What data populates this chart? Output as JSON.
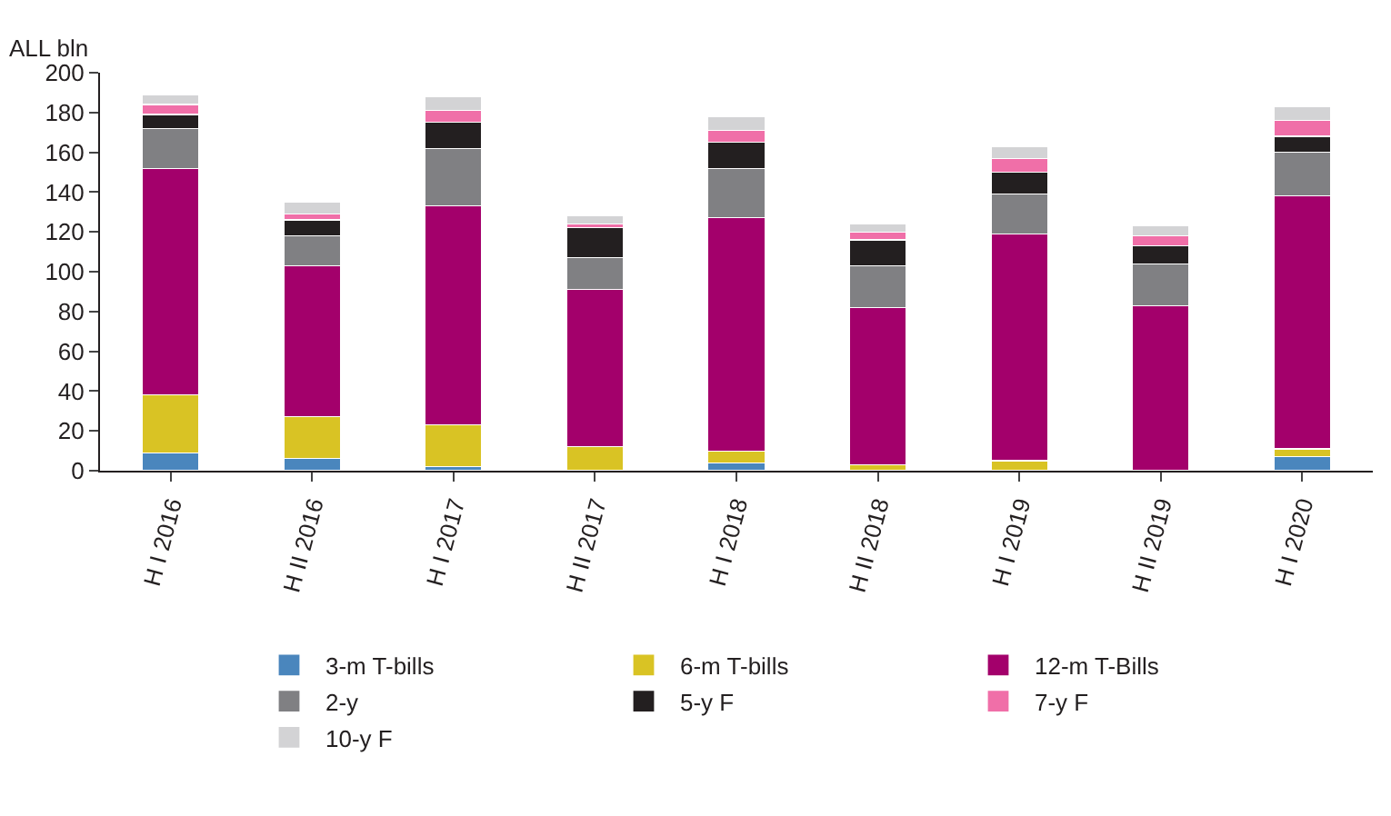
{
  "chart_data": {
    "type": "bar",
    "stacked": true,
    "ylabel": "ALL bln",
    "categories": [
      "H I 2016",
      "H II 2016",
      "H I 2017",
      "H II 2017",
      "H I 2018",
      "H II 2018",
      "H I 2019",
      "H II 2019",
      "H I 2020"
    ],
    "series": [
      {
        "name": "3-m T-bills",
        "color": "#4a86bd",
        "values": [
          9,
          6,
          2,
          0,
          4,
          0,
          0,
          0,
          7
        ]
      },
      {
        "name": "6-m T-bills",
        "color": "#d9c324",
        "values": [
          29,
          21,
          21,
          12,
          6,
          3,
          5,
          0,
          4
        ]
      },
      {
        "name": "12-m T-Bills",
        "color": "#a3006b",
        "values": [
          114,
          76,
          110,
          79,
          117,
          79,
          114,
          83,
          127
        ]
      },
      {
        "name": "2-y",
        "color": "#808083",
        "values": [
          20,
          15,
          29,
          16,
          25,
          21,
          20,
          21,
          22
        ]
      },
      {
        "name": "5-y F",
        "color": "#231f20",
        "values": [
          7,
          8,
          13,
          15,
          13,
          13,
          11,
          9,
          8
        ]
      },
      {
        "name": "7-y F",
        "color": "#f06fa8",
        "values": [
          5,
          3,
          6,
          2,
          6,
          4,
          7,
          5,
          8
        ]
      },
      {
        "name": "10-y F",
        "color": "#d3d3d5",
        "values": [
          5,
          6,
          7,
          4,
          7,
          4,
          6,
          5,
          7
        ]
      }
    ],
    "ylim": [
      0,
      200
    ],
    "yticks": [
      0,
      20,
      40,
      60,
      80,
      100,
      120,
      140,
      160,
      180,
      200
    ],
    "legend": "bottom"
  }
}
